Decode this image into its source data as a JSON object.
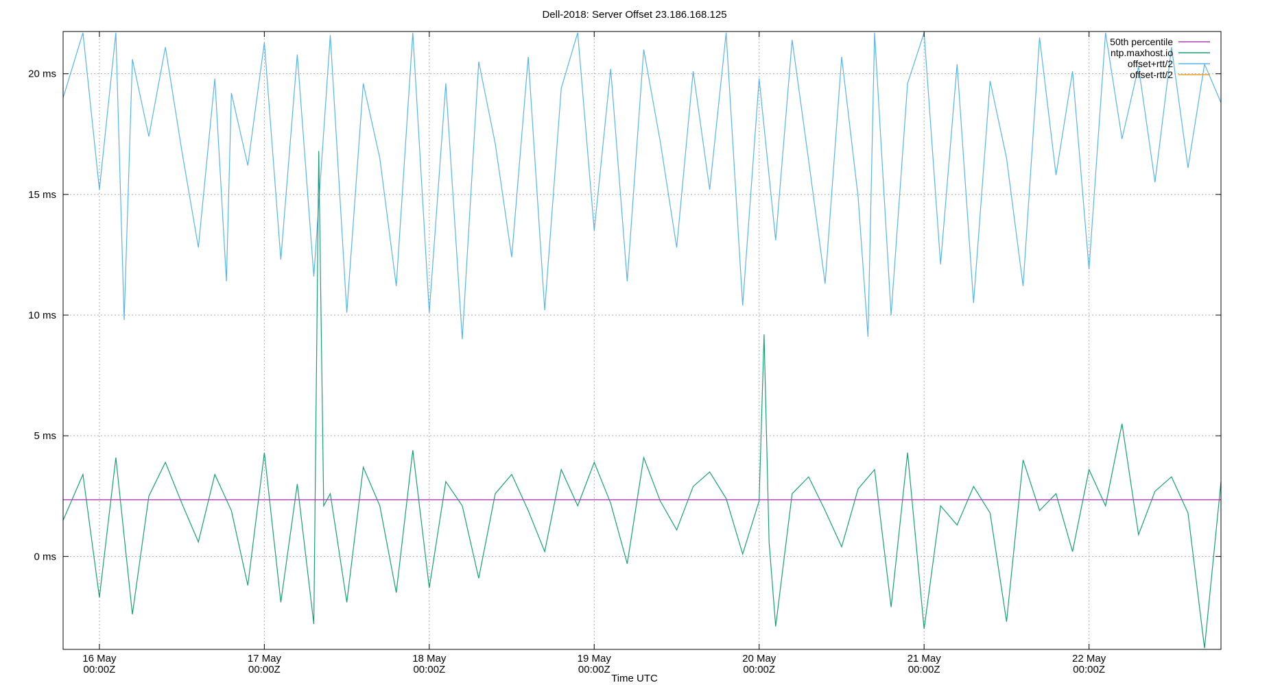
{
  "chart_data": {
    "type": "line",
    "title": "Dell-2018: Server Offset 23.186.168.125",
    "xlabel": "Time UTC",
    "ylabel": "",
    "x_unit": "days since 16 May 00:00Z",
    "xlim": [
      -0.22,
      6.8
    ],
    "ylim": [
      -3.85,
      21.75
    ],
    "grid": true,
    "legend_position": "top-right",
    "x_ticks": [
      {
        "x": 0,
        "label1": "16 May",
        "label2": "00:00Z"
      },
      {
        "x": 1,
        "label1": "17 May",
        "label2": "00:00Z"
      },
      {
        "x": 2,
        "label1": "18 May",
        "label2": "00:00Z"
      },
      {
        "x": 3,
        "label1": "19 May",
        "label2": "00:00Z"
      },
      {
        "x": 4,
        "label1": "20 May",
        "label2": "00:00Z"
      },
      {
        "x": 5,
        "label1": "21 May",
        "label2": "00:00Z"
      },
      {
        "x": 6,
        "label1": "22 May",
        "label2": "00:00Z"
      }
    ],
    "y_ticks": [
      {
        "y": 0,
        "label": "0 ms"
      },
      {
        "y": 5,
        "label": "5 ms"
      },
      {
        "y": 10,
        "label": "10 ms"
      },
      {
        "y": 15,
        "label": "15 ms"
      },
      {
        "y": 20,
        "label": "20 ms"
      }
    ],
    "series": [
      {
        "name": "50th percentile",
        "color": "#b23ab5",
        "kind": "hline",
        "value": 2.35
      },
      {
        "name": "ntp.maxhost.io",
        "color": "#169f74",
        "kind": "line",
        "x": [
          -0.22,
          -0.1,
          0,
          0.1,
          0.2,
          0.3,
          0.4,
          0.5,
          0.6,
          0.7,
          0.8,
          0.9,
          1.0,
          1.1,
          1.2,
          1.3,
          1.33,
          1.36,
          1.4,
          1.5,
          1.6,
          1.7,
          1.8,
          1.9,
          2.0,
          2.1,
          2.2,
          2.3,
          2.4,
          2.5,
          2.6,
          2.7,
          2.8,
          2.9,
          3.0,
          3.1,
          3.2,
          3.3,
          3.4,
          3.5,
          3.6,
          3.7,
          3.8,
          3.9,
          4.0,
          4.03,
          4.06,
          4.1,
          4.2,
          4.3,
          4.4,
          4.5,
          4.6,
          4.7,
          4.8,
          4.9,
          5.0,
          5.1,
          5.2,
          5.3,
          5.4,
          5.5,
          5.6,
          5.7,
          5.8,
          5.9,
          6.0,
          6.1,
          6.2,
          6.3,
          6.4,
          6.5,
          6.6,
          6.7,
          6.8
        ],
        "y": [
          1.5,
          3.4,
          -1.7,
          4.1,
          -2.4,
          2.5,
          3.9,
          2.2,
          0.6,
          3.4,
          1.9,
          -1.2,
          4.3,
          -1.9,
          3.0,
          -2.8,
          16.8,
          2.1,
          2.6,
          -1.9,
          3.7,
          2.1,
          -1.5,
          4.4,
          -1.3,
          3.1,
          2.1,
          -0.9,
          2.6,
          3.4,
          1.9,
          0.2,
          3.6,
          2.1,
          3.9,
          2.2,
          -0.3,
          4.1,
          2.3,
          1.1,
          2.9,
          3.5,
          2.4,
          0.1,
          2.3,
          9.2,
          0.6,
          -2.9,
          2.6,
          3.3,
          1.9,
          0.4,
          2.8,
          3.6,
          -2.1,
          4.3,
          -3.0,
          2.1,
          1.3,
          2.9,
          1.8,
          -2.7,
          4.0,
          1.9,
          2.6,
          0.2,
          3.6,
          2.1,
          5.5,
          0.9,
          2.7,
          3.3,
          1.8,
          -3.8,
          3.1
        ]
      },
      {
        "name": "offset+rtt/2",
        "color": "#56b4e9",
        "kind": "line",
        "x": [
          -0.22,
          -0.1,
          0,
          0.1,
          0.15,
          0.2,
          0.3,
          0.4,
          0.5,
          0.6,
          0.7,
          0.77,
          0.8,
          0.9,
          1.0,
          1.1,
          1.2,
          1.3,
          1.4,
          1.5,
          1.6,
          1.7,
          1.8,
          1.9,
          2.0,
          2.1,
          2.2,
          2.3,
          2.4,
          2.5,
          2.6,
          2.7,
          2.8,
          2.9,
          3.0,
          3.1,
          3.2,
          3.3,
          3.4,
          3.5,
          3.6,
          3.7,
          3.8,
          3.9,
          4.0,
          4.1,
          4.2,
          4.3,
          4.4,
          4.5,
          4.6,
          4.66,
          4.7,
          4.8,
          4.9,
          5.0,
          5.1,
          5.2,
          5.3,
          5.4,
          5.5,
          5.6,
          5.7,
          5.8,
          5.9,
          6.0,
          6.1,
          6.2,
          6.3,
          6.4,
          6.5,
          6.6,
          6.7,
          6.8
        ],
        "y": [
          19.0,
          21.7,
          15.2,
          21.7,
          9.8,
          20.6,
          17.4,
          21.1,
          16.8,
          12.8,
          19.8,
          11.4,
          19.2,
          16.2,
          21.3,
          12.3,
          20.8,
          11.6,
          21.6,
          10.1,
          19.6,
          16.5,
          11.2,
          21.7,
          10.1,
          19.6,
          9.0,
          20.5,
          17.1,
          12.4,
          20.7,
          10.2,
          19.4,
          21.7,
          13.5,
          20.2,
          11.4,
          21.0,
          17.2,
          12.8,
          20.1,
          15.2,
          21.7,
          10.4,
          19.8,
          13.1,
          21.4,
          16.4,
          11.3,
          20.7,
          14.9,
          9.1,
          21.7,
          10.0,
          19.6,
          21.7,
          12.1,
          20.4,
          10.5,
          19.7,
          16.5,
          11.2,
          21.5,
          15.8,
          20.1,
          11.9,
          21.7,
          17.3,
          20.3,
          15.5,
          21.1,
          16.1,
          20.4,
          18.8
        ]
      },
      {
        "name": "offset-rtt/2",
        "color": "#e6a121",
        "kind": "none"
      }
    ]
  }
}
